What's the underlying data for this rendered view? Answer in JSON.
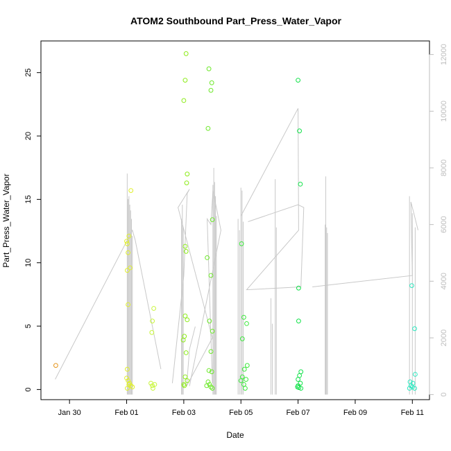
{
  "chart_data": {
    "type": "scatter",
    "title": "ATOM2 Southbound Part_Press_Water_Vapor",
    "xlabel": "Date",
    "ylabel": "Part_Press_Water_Vapor",
    "x_ticks": [
      "Jan 30",
      "Feb 01",
      "Feb 03",
      "Feb 05",
      "Feb 07",
      "Feb 09",
      "Feb 11"
    ],
    "x_tick_values": [
      1,
      3,
      5,
      7,
      9,
      11,
      13
    ],
    "xlim": [
      0.0,
      13.6
    ],
    "ylim": [
      -0.8,
      27.5
    ],
    "y_ticks": [
      0,
      5,
      10,
      15,
      20,
      25
    ],
    "y2lim": [
      -180,
      12480
    ],
    "y2_ticks": [
      0,
      2000,
      4000,
      6000,
      8000,
      10000,
      12000
    ],
    "grid": false,
    "colors": {
      "Jan 29": "#e6961e",
      "Feb 01": "#e0f02a",
      "Feb 02": "#c8f53a",
      "Feb 03": "#8cec18",
      "Feb 04": "#6de82a",
      "Feb 05": "#3ee83e",
      "Feb 06": "#12e24a",
      "Feb 11": "#2ee8c0",
      "secondary_line": "#c8c8c8"
    },
    "secondary_series": {
      "color": "#c8c8c8",
      "segments": [
        [
          [
            0.5,
            540
          ],
          [
            3.2,
            5800
          ],
          [
            3.3,
            5450
          ],
          [
            4.2,
            900
          ]
        ],
        [
          [
            4.6,
            400
          ],
          [
            5.0,
            4200
          ],
          [
            5.12,
            7100
          ],
          [
            5.2,
            7250
          ],
          [
            4.8,
            6600
          ],
          [
            6.0,
            2000
          ],
          [
            5.1,
            300
          ],
          [
            5.2,
            1600
          ],
          [
            5.4,
            2400
          ]
        ],
        [
          [
            6.0,
            400
          ],
          [
            5.82,
            6200
          ],
          [
            5.95,
            6000
          ],
          [
            6.02,
            7200
          ],
          [
            6.3,
            5800
          ],
          [
            5.2,
            300
          ]
        ],
        [
          [
            7.0,
            6300
          ],
          [
            9.0,
            10100
          ],
          [
            9.02,
            5800
          ],
          [
            7.2,
            3700
          ],
          [
            9.1,
            3800
          ],
          [
            9.2,
            6600
          ],
          [
            9.0,
            6700
          ],
          [
            7.25,
            6100
          ]
        ],
        [
          [
            9.5,
            3800
          ],
          [
            13.0,
            4200
          ],
          [
            12.95,
            6800
          ],
          [
            13.05,
            6400
          ],
          [
            13.2,
            5800
          ]
        ]
      ],
      "spikes": [
        {
          "x": 3.02,
          "y": 7800
        },
        {
          "x": 3.05,
          "y": 6900
        },
        {
          "x": 3.08,
          "y": 7000
        },
        {
          "x": 3.11,
          "y": 6700
        },
        {
          "x": 3.14,
          "y": 6500
        },
        {
          "x": 3.17,
          "y": 6200
        },
        {
          "x": 3.2,
          "y": 5600
        },
        {
          "x": 4.92,
          "y": 6200
        },
        {
          "x": 4.95,
          "y": 6700
        },
        {
          "x": 4.98,
          "y": 5900
        },
        {
          "x": 6.02,
          "y": 7400
        },
        {
          "x": 6.05,
          "y": 8000
        },
        {
          "x": 6.08,
          "y": 7500
        },
        {
          "x": 6.11,
          "y": 7000
        },
        {
          "x": 6.14,
          "y": 6300
        },
        {
          "x": 6.9,
          "y": 6200
        },
        {
          "x": 6.95,
          "y": 5800
        },
        {
          "x": 7.0,
          "y": 7300
        },
        {
          "x": 7.04,
          "y": 7200
        },
        {
          "x": 7.08,
          "y": 6100
        },
        {
          "x": 8.05,
          "y": 3400
        },
        {
          "x": 8.1,
          "y": 2500
        },
        {
          "x": 8.2,
          "y": 7600
        },
        {
          "x": 8.24,
          "y": 5900
        },
        {
          "x": 9.97,
          "y": 7700
        },
        {
          "x": 9.95,
          "y": 6000
        },
        {
          "x": 10.0,
          "y": 5900
        },
        {
          "x": 10.03,
          "y": 5700
        },
        {
          "x": 12.9,
          "y": 7000
        },
        {
          "x": 13.0,
          "y": 6400
        },
        {
          "x": 13.1,
          "y": 5900
        }
      ]
    },
    "points": [
      {
        "x": 0.52,
        "y": 1.9,
        "c": "Jan 29"
      },
      {
        "x": 3.0,
        "y": 11.7,
        "c": "Feb 01"
      },
      {
        "x": 3.02,
        "y": 11.5,
        "c": "Feb 01"
      },
      {
        "x": 3.05,
        "y": 10.8,
        "c": "Feb 01"
      },
      {
        "x": 3.08,
        "y": 12.1,
        "c": "Feb 01"
      },
      {
        "x": 3.15,
        "y": 15.7,
        "c": "Feb 01"
      },
      {
        "x": 3.12,
        "y": 9.6,
        "c": "Feb 01"
      },
      {
        "x": 3.02,
        "y": 9.4,
        "c": "Feb 01"
      },
      {
        "x": 3.05,
        "y": 6.7,
        "c": "Feb 01"
      },
      {
        "x": 3.02,
        "y": 1.6,
        "c": "Feb 01"
      },
      {
        "x": 3.0,
        "y": 0.9,
        "c": "Feb 01"
      },
      {
        "x": 3.05,
        "y": 0.7,
        "c": "Feb 01"
      },
      {
        "x": 3.1,
        "y": 0.5,
        "c": "Feb 01"
      },
      {
        "x": 3.15,
        "y": 0.3,
        "c": "Feb 01"
      },
      {
        "x": 3.2,
        "y": 0.2,
        "c": "Feb 01"
      },
      {
        "x": 3.02,
        "y": 0.1,
        "c": "Feb 01"
      },
      {
        "x": 3.08,
        "y": 0.4,
        "c": "Feb 01"
      },
      {
        "x": 3.95,
        "y": 6.4,
        "c": "Feb 02"
      },
      {
        "x": 3.9,
        "y": 5.4,
        "c": "Feb 02"
      },
      {
        "x": 3.88,
        "y": 4.5,
        "c": "Feb 02"
      },
      {
        "x": 3.85,
        "y": 0.5,
        "c": "Feb 02"
      },
      {
        "x": 3.9,
        "y": 0.3,
        "c": "Feb 02"
      },
      {
        "x": 3.92,
        "y": 0.1,
        "c": "Feb 02"
      },
      {
        "x": 3.98,
        "y": 0.4,
        "c": "Feb 02"
      },
      {
        "x": 5.08,
        "y": 26.5,
        "c": "Feb 03"
      },
      {
        "x": 5.05,
        "y": 24.4,
        "c": "Feb 03"
      },
      {
        "x": 5.0,
        "y": 22.8,
        "c": "Feb 03"
      },
      {
        "x": 5.12,
        "y": 17.0,
        "c": "Feb 03"
      },
      {
        "x": 5.1,
        "y": 16.3,
        "c": "Feb 03"
      },
      {
        "x": 5.05,
        "y": 11.3,
        "c": "Feb 03"
      },
      {
        "x": 5.08,
        "y": 10.9,
        "c": "Feb 03"
      },
      {
        "x": 5.05,
        "y": 5.8,
        "c": "Feb 03"
      },
      {
        "x": 5.12,
        "y": 5.5,
        "c": "Feb 03"
      },
      {
        "x": 5.02,
        "y": 4.2,
        "c": "Feb 03"
      },
      {
        "x": 4.98,
        "y": 3.9,
        "c": "Feb 03"
      },
      {
        "x": 5.08,
        "y": 2.9,
        "c": "Feb 03"
      },
      {
        "x": 5.05,
        "y": 1.0,
        "c": "Feb 03"
      },
      {
        "x": 5.12,
        "y": 0.7,
        "c": "Feb 03"
      },
      {
        "x": 5.0,
        "y": 0.4,
        "c": "Feb 03"
      },
      {
        "x": 5.02,
        "y": 0.3,
        "c": "Feb 03"
      },
      {
        "x": 5.88,
        "y": 25.3,
        "c": "Feb 04"
      },
      {
        "x": 5.98,
        "y": 24.2,
        "c": "Feb 04"
      },
      {
        "x": 5.95,
        "y": 23.6,
        "c": "Feb 04"
      },
      {
        "x": 5.85,
        "y": 20.6,
        "c": "Feb 04"
      },
      {
        "x": 6.0,
        "y": 13.4,
        "c": "Feb 04"
      },
      {
        "x": 5.82,
        "y": 10.4,
        "c": "Feb 04"
      },
      {
        "x": 5.95,
        "y": 9.0,
        "c": "Feb 04"
      },
      {
        "x": 5.9,
        "y": 5.4,
        "c": "Feb 04"
      },
      {
        "x": 6.0,
        "y": 4.6,
        "c": "Feb 04"
      },
      {
        "x": 5.95,
        "y": 3.0,
        "c": "Feb 04"
      },
      {
        "x": 5.88,
        "y": 1.5,
        "c": "Feb 04"
      },
      {
        "x": 5.98,
        "y": 1.4,
        "c": "Feb 04"
      },
      {
        "x": 5.85,
        "y": 0.6,
        "c": "Feb 04"
      },
      {
        "x": 5.9,
        "y": 0.4,
        "c": "Feb 04"
      },
      {
        "x": 5.95,
        "y": 0.2,
        "c": "Feb 04"
      },
      {
        "x": 6.0,
        "y": 0.1,
        "c": "Feb 04"
      },
      {
        "x": 5.8,
        "y": 0.3,
        "c": "Feb 04"
      },
      {
        "x": 7.02,
        "y": 11.5,
        "c": "Feb 05"
      },
      {
        "x": 7.1,
        "y": 5.7,
        "c": "Feb 05"
      },
      {
        "x": 7.2,
        "y": 5.2,
        "c": "Feb 05"
      },
      {
        "x": 7.05,
        "y": 4.0,
        "c": "Feb 05"
      },
      {
        "x": 7.22,
        "y": 1.9,
        "c": "Feb 05"
      },
      {
        "x": 7.12,
        "y": 1.6,
        "c": "Feb 05"
      },
      {
        "x": 7.05,
        "y": 1.0,
        "c": "Feb 05"
      },
      {
        "x": 7.18,
        "y": 0.8,
        "c": "Feb 05"
      },
      {
        "x": 7.0,
        "y": 0.7,
        "c": "Feb 05"
      },
      {
        "x": 7.1,
        "y": 0.4,
        "c": "Feb 05"
      },
      {
        "x": 7.15,
        "y": 0.1,
        "c": "Feb 05"
      },
      {
        "x": 9.0,
        "y": 24.4,
        "c": "Feb 06"
      },
      {
        "x": 9.05,
        "y": 20.4,
        "c": "Feb 06"
      },
      {
        "x": 9.08,
        "y": 16.2,
        "c": "Feb 06"
      },
      {
        "x": 9.02,
        "y": 8.0,
        "c": "Feb 06"
      },
      {
        "x": 9.02,
        "y": 5.4,
        "c": "Feb 06"
      },
      {
        "x": 9.1,
        "y": 1.4,
        "c": "Feb 06"
      },
      {
        "x": 9.05,
        "y": 1.1,
        "c": "Feb 06"
      },
      {
        "x": 9.0,
        "y": 0.8,
        "c": "Feb 06"
      },
      {
        "x": 9.08,
        "y": 0.5,
        "c": "Feb 06"
      },
      {
        "x": 8.98,
        "y": 0.2,
        "c": "Feb 06"
      },
      {
        "x": 9.03,
        "y": 0.15,
        "c": "Feb 06"
      },
      {
        "x": 9.1,
        "y": 0.1,
        "c": "Feb 06"
      },
      {
        "x": 9.0,
        "y": 0.3,
        "c": "Feb 06"
      },
      {
        "x": 12.98,
        "y": 8.2,
        "c": "Feb 11"
      },
      {
        "x": 13.08,
        "y": 4.8,
        "c": "Feb 11"
      },
      {
        "x": 13.1,
        "y": 1.2,
        "c": "Feb 11"
      },
      {
        "x": 12.92,
        "y": 0.6,
        "c": "Feb 11"
      },
      {
        "x": 13.02,
        "y": 0.5,
        "c": "Feb 11"
      },
      {
        "x": 12.95,
        "y": 0.3,
        "c": "Feb 11"
      },
      {
        "x": 13.0,
        "y": 0.2,
        "c": "Feb 11"
      },
      {
        "x": 13.08,
        "y": 0.1,
        "c": "Feb 11"
      },
      {
        "x": 12.9,
        "y": 0.1,
        "c": "Feb 11"
      }
    ]
  }
}
